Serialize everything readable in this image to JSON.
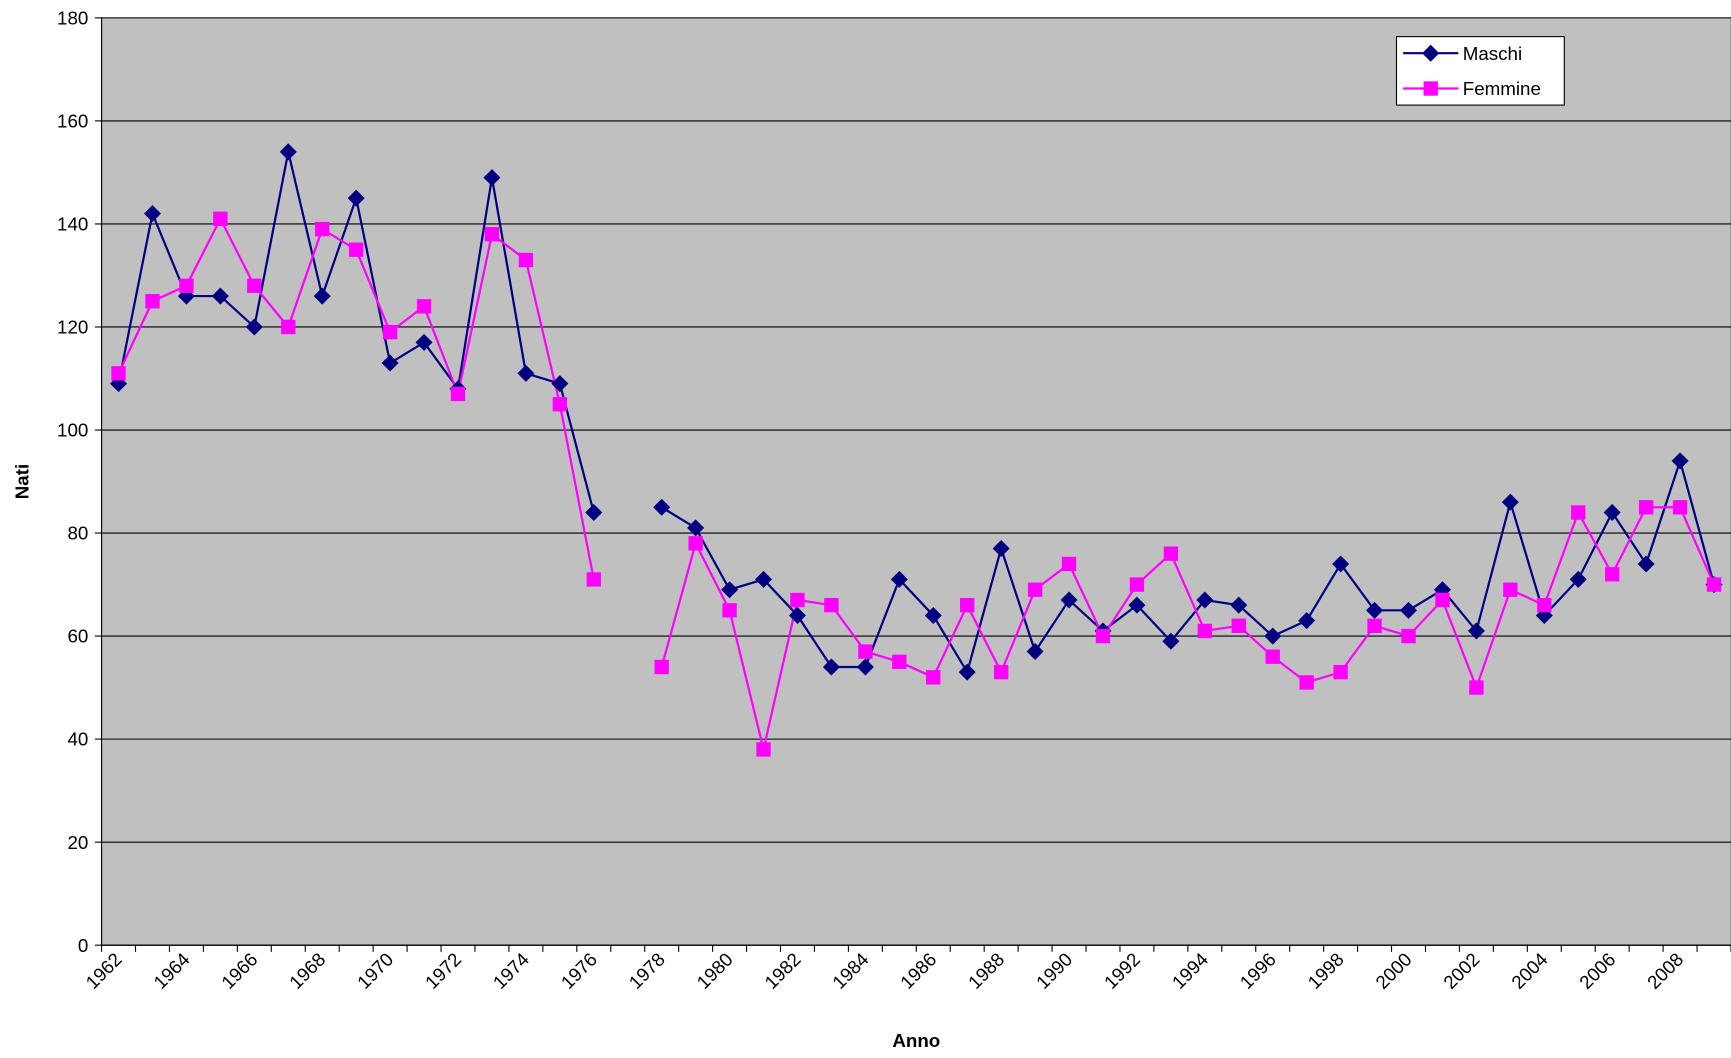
{
  "chart_data": {
    "type": "line",
    "x_label": "Anno",
    "y_label": "Nati",
    "categories": [
      "1962",
      null,
      "1964",
      null,
      "1966",
      null,
      "1968",
      null,
      "1970",
      null,
      "1972",
      null,
      "1974",
      null,
      "1976",
      null,
      "1978",
      null,
      "1980",
      null,
      "1982",
      null,
      "1984",
      null,
      "1986",
      null,
      "1988",
      null,
      "1990",
      null,
      "1992",
      null,
      "1994",
      null,
      "1996",
      null,
      "1998",
      null,
      "2000",
      null,
      "2002",
      null,
      "2004",
      null,
      "2006",
      null,
      "2008",
      null
    ],
    "series": [
      {
        "name": "Maschi",
        "color": "#000080",
        "marker": "diamond",
        "values": [
          109,
          142,
          126,
          126,
          120,
          154,
          126,
          145,
          113,
          117,
          108,
          149,
          111,
          109,
          84,
          null,
          85,
          81,
          69,
          71,
          64,
          54,
          54,
          71,
          64,
          53,
          77,
          57,
          67,
          61,
          66,
          59,
          67,
          66,
          60,
          63,
          74,
          65,
          65,
          69,
          61,
          86,
          64,
          71,
          84,
          74,
          94,
          70
        ]
      },
      {
        "name": "Femmine",
        "color": "#ff00ff",
        "marker": "square",
        "values": [
          111,
          125,
          128,
          141,
          128,
          120,
          139,
          135,
          119,
          124,
          107,
          138,
          133,
          105,
          71,
          null,
          54,
          78,
          65,
          38,
          67,
          66,
          57,
          55,
          52,
          66,
          53,
          69,
          74,
          60,
          70,
          76,
          61,
          62,
          56,
          51,
          53,
          62,
          60,
          67,
          50,
          69,
          66,
          84,
          72,
          85,
          85,
          70
        ]
      }
    ],
    "ylim": [
      0,
      180
    ],
    "yticks": [
      0,
      20,
      40,
      60,
      80,
      100,
      120,
      140,
      160,
      180
    ],
    "grid": true,
    "plot_background": "#c0c0c0",
    "legend": "top-right"
  }
}
